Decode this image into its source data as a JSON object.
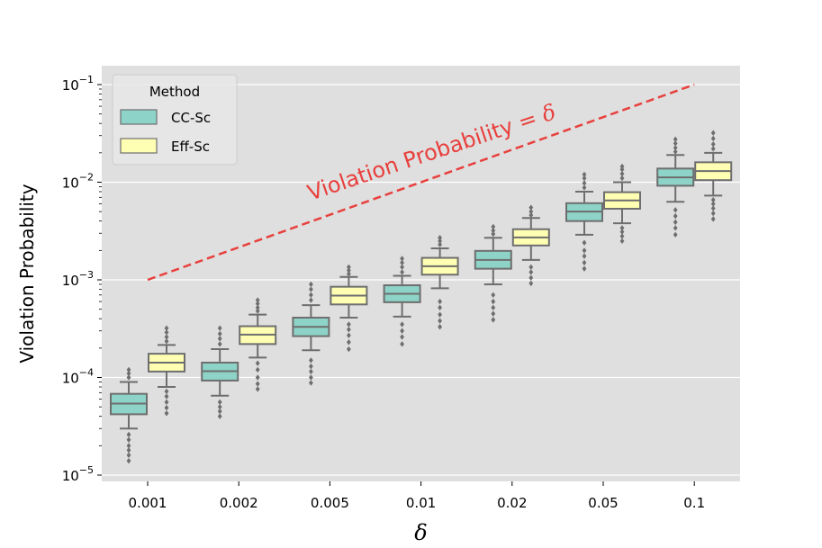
{
  "chart_data": {
    "type": "boxplot",
    "title": "",
    "xlabel": "δ",
    "ylabel": "Violation Probability",
    "yscale": "log",
    "ylim": [
      1e-05,
      0.1
    ],
    "categories": [
      "0.001",
      "0.002",
      "0.005",
      "0.01",
      "0.02",
      "0.05",
      "0.1"
    ],
    "y_tick_labels": [
      {
        "value": 1e-05,
        "base": "10",
        "exp": "−5"
      },
      {
        "value": 0.0001,
        "base": "10",
        "exp": "−4"
      },
      {
        "value": 0.001,
        "base": "10",
        "exp": "−3"
      },
      {
        "value": 0.01,
        "base": "10",
        "exp": "−2"
      },
      {
        "value": 0.1,
        "base": "10",
        "exp": "−1"
      }
    ],
    "grid": true,
    "legend": {
      "title": "Method",
      "position": "top-left",
      "entries": [
        "CC-Sc",
        "Eff-Sc"
      ]
    },
    "series": [
      {
        "name": "CC-Sc",
        "color": "#8dd3c7",
        "boxes": [
          {
            "q1": 4.2e-05,
            "median": 5.4e-05,
            "q3": 6.8e-05,
            "whislo": 3e-05,
            "whishi": 9e-05,
            "fliers": [
              1.4e-05,
              1.6e-05,
              1.8e-05,
              2e-05,
              2.3e-05,
              2.6e-05,
              0.0001,
              0.00011,
              0.00012
            ]
          },
          {
            "q1": 9.3e-05,
            "median": 0.000116,
            "q3": 0.000142,
            "whislo": 6.5e-05,
            "whishi": 0.000195,
            "fliers": [
              4e-05,
              4.5e-05,
              5e-05,
              5.6e-05,
              0.00022,
              0.00025,
              0.00028,
              0.00032
            ]
          },
          {
            "q1": 0.000265,
            "median": 0.00033,
            "q3": 0.00041,
            "whislo": 0.00019,
            "whishi": 0.00055,
            "fliers": [
              8.8e-05,
              0.0001,
              0.000115,
              0.00013,
              0.00015,
              0.00062,
              0.0007,
              0.0008,
              0.0009
            ]
          },
          {
            "q1": 0.00059,
            "median": 0.00072,
            "q3": 0.00088,
            "whislo": 0.00042,
            "whishi": 0.0011,
            "fliers": [
              0.00022,
              0.00026,
              0.0003,
              0.00035,
              0.0012,
              0.00135,
              0.0015,
              0.00165
            ]
          },
          {
            "q1": 0.0013,
            "median": 0.0016,
            "q3": 0.00198,
            "whislo": 0.0009,
            "whishi": 0.0027,
            "fliers": [
              0.00039,
              0.00045,
              0.00052,
              0.0006,
              0.0007,
              0.00295,
              0.0032,
              0.0035
            ]
          },
          {
            "q1": 0.004,
            "median": 0.005,
            "q3": 0.0061,
            "whislo": 0.0029,
            "whishi": 0.008,
            "fliers": [
              0.0013,
              0.0015,
              0.00175,
              0.002,
              0.0024,
              0.0088,
              0.0098,
              0.011,
              0.012
            ]
          },
          {
            "q1": 0.0092,
            "median": 0.0112,
            "q3": 0.0138,
            "whislo": 0.0063,
            "whishi": 0.019,
            "fliers": [
              0.0029,
              0.0034,
              0.0039,
              0.0045,
              0.0052,
              0.0205,
              0.0225,
              0.025,
              0.0275
            ]
          }
        ]
      },
      {
        "name": "Eff-Sc",
        "color": "#ffffb3",
        "boxes": [
          {
            "q1": 0.000115,
            "median": 0.000142,
            "q3": 0.000175,
            "whislo": 8e-05,
            "whishi": 0.000215,
            "fliers": [
              4.3e-05,
              4.9e-05,
              5.6e-05,
              6.4e-05,
              7.2e-05,
              0.000235,
              0.00026,
              0.00029,
              0.00032
            ]
          },
          {
            "q1": 0.00022,
            "median": 0.000275,
            "q3": 0.000335,
            "whislo": 0.00016,
            "whishi": 0.00044,
            "fliers": [
              7.6e-05,
              8.6e-05,
              0.0001,
              0.00012,
              0.00014,
              0.00048,
              0.00052,
              0.00057,
              0.00062
            ]
          },
          {
            "q1": 0.00056,
            "median": 0.00069,
            "q3": 0.00085,
            "whislo": 0.00041,
            "whishi": 0.00107,
            "fliers": [
              0.000195,
              0.00023,
              0.00027,
              0.00031,
              0.00035,
              0.00115,
              0.00125,
              0.00135
            ]
          },
          {
            "q1": 0.00113,
            "median": 0.00138,
            "q3": 0.00168,
            "whislo": 0.00082,
            "whishi": 0.0021,
            "fliers": [
              0.00033,
              0.00038,
              0.00044,
              0.00052,
              0.0006,
              0.0023,
              0.0025,
              0.0027
            ]
          },
          {
            "q1": 0.00225,
            "median": 0.00272,
            "q3": 0.0033,
            "whislo": 0.0016,
            "whishi": 0.0043,
            "fliers": [
              0.00092,
              0.00105,
              0.0012,
              0.00135,
              0.0046,
              0.005,
              0.0055
            ]
          },
          {
            "q1": 0.00535,
            "median": 0.0065,
            "q3": 0.0079,
            "whislo": 0.0038,
            "whishi": 0.01,
            "fliers": [
              0.0025,
              0.0028,
              0.0031,
              0.0034,
              0.011,
              0.0122,
              0.0135,
              0.0145
            ]
          },
          {
            "q1": 0.0105,
            "median": 0.013,
            "q3": 0.016,
            "whislo": 0.0073,
            "whishi": 0.02,
            "fliers": [
              0.0042,
              0.0048,
              0.0054,
              0.006,
              0.0066,
              0.022,
              0.0245,
              0.028,
              0.032
            ]
          }
        ]
      }
    ],
    "reference_line": {
      "label": "Violation Probability = δ",
      "color": "#e8403d",
      "style": "dashed",
      "x_start": "0.001",
      "y_start": 0.001,
      "x_end": "0.1",
      "y_end": 0.1
    },
    "annotation": {
      "text_main": "Violation Probability",
      "text_eq": " = ",
      "text_delta": "δ",
      "color": "#e8403d"
    },
    "colors": {
      "background": "#dfdfdf",
      "grid": "#ffffff",
      "box_edge": "#6e6e6e",
      "flier": "#6e6e6e"
    }
  }
}
